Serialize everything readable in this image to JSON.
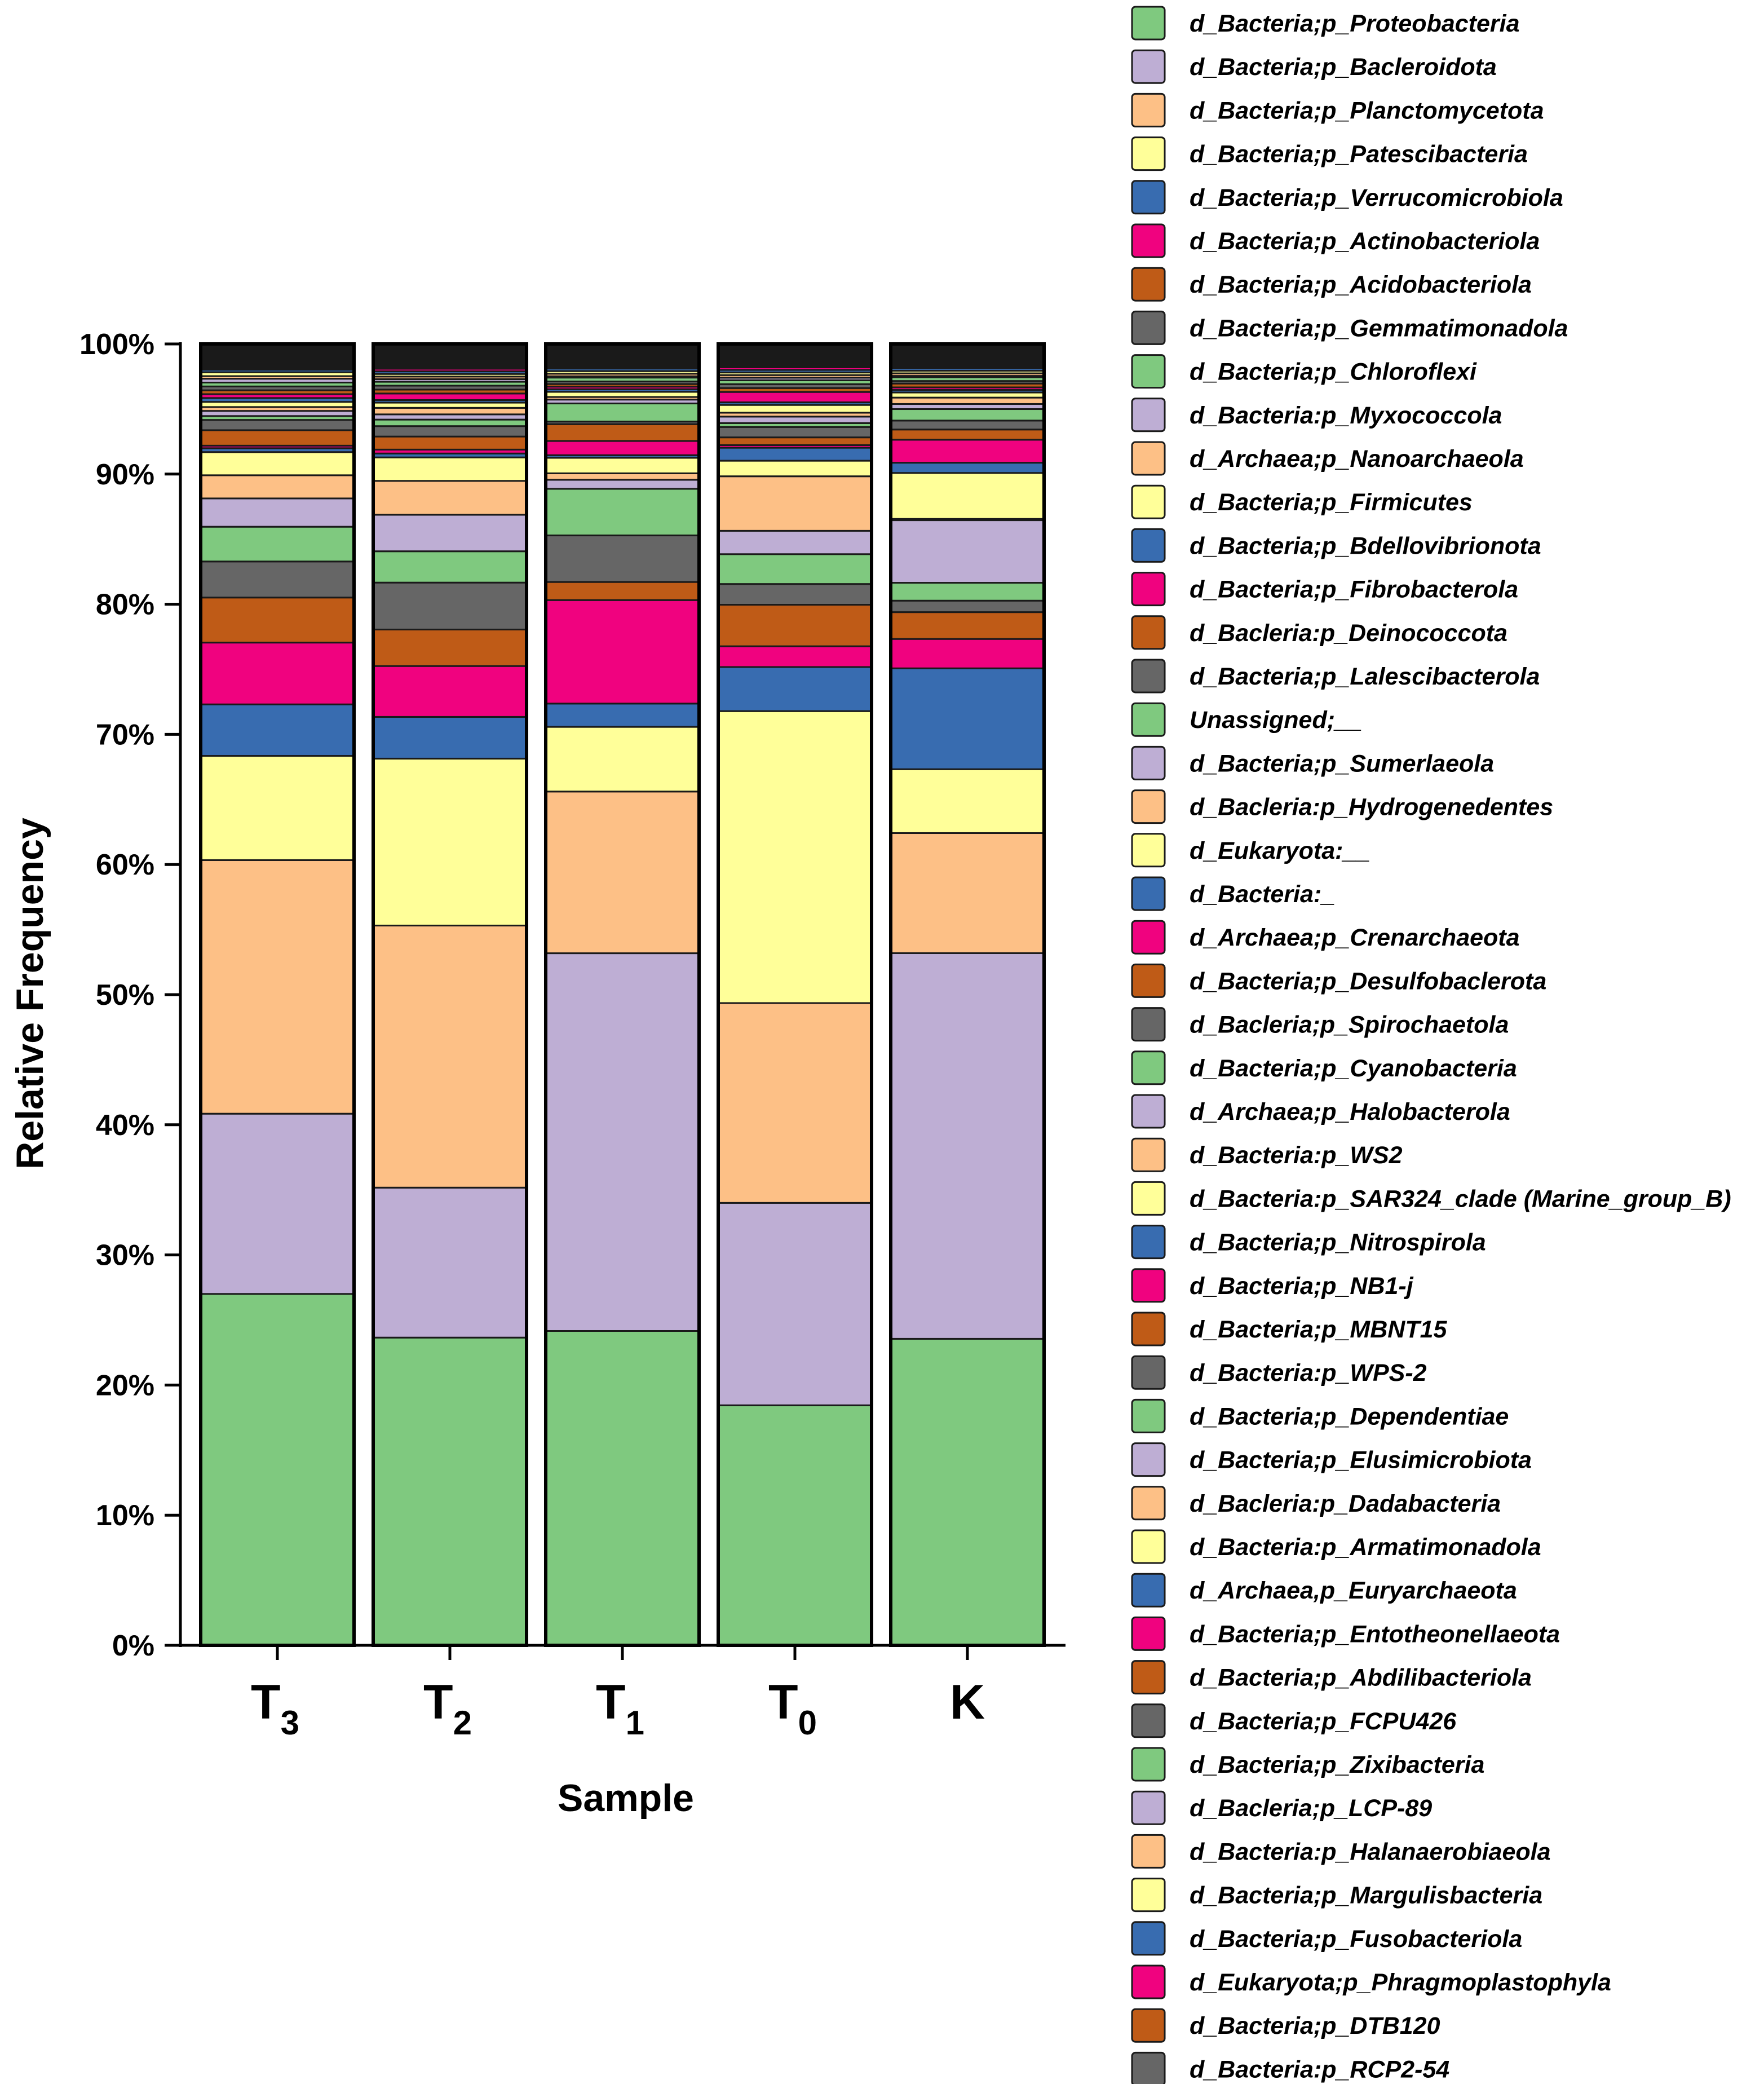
{
  "chart_data": {
    "type": "stacked-bar-100",
    "title": "",
    "xlabel": "Sample",
    "ylabel": "Relative Frequency",
    "ylim": [
      0,
      100
    ],
    "yticks": [
      "0%",
      "10%",
      "20%",
      "30%",
      "40%",
      "50%",
      "60%",
      "70%",
      "80%",
      "90%",
      "100%"
    ],
    "categories": [
      {
        "main": "T",
        "sub": "3"
      },
      {
        "main": "T",
        "sub": "2"
      },
      {
        "main": "T",
        "sub": "1"
      },
      {
        "main": "T",
        "sub": "0"
      },
      {
        "main": "K",
        "sub": ""
      }
    ],
    "palette": [
      "#7fc97f",
      "#beaed4",
      "#fdc086",
      "#ffff99",
      "#386cb0",
      "#f0027f",
      "#bf5b17",
      "#666666"
    ],
    "legend": [
      "d_Bacteria;p_Proteobacteria",
      "d_Bacteria;p_Bacleroidota",
      "d_Bacteria;p_Planctomycetota",
      "d_Bacteria;p_Patescibacteria",
      "d_Bacteria;p_Verrucomicrobiola",
      "d_Bacteria;p_Actinobacteriola",
      "d_Bacteria;p_Acidobacteriola",
      "d_Bacteria;p_Gemmatimonadola",
      "d_Bacteria;p_Chloroflexi",
      "d_Bacteria:p_Myxococcola",
      "d_Archaea;p_Nanoarchaeola",
      "d_Bacteria;p_Firmicutes",
      "d_Bacteria;p_Bdellovibrionota",
      "d_Bacteria;p_Fibrobacterola",
      "d_Bacleria:p_Deinococcota",
      "d_Bacteria;p_Lalescibacterola",
      "Unassigned;__",
      "d_Bacteria;p_Sumerlaeola",
      "d_Bacleria:p_Hydrogenedentes",
      "d_Eukaryota:__",
      "d_Bacteria:_",
      "d_Archaea;p_Crenarchaeota",
      "d_Bacteria;p_Desulfobaclerota",
      "d_Bacleria;p_Spirochaetola",
      "d_Bacteria;p_Cyanobacteria",
      "d_Archaea;p_Halobacterola",
      "d_Bacteria:p_WS2",
      "d_Bacteria:p_SAR324_clade (Marine_group_B)",
      "d_Bacteria;p_Nitrospirola",
      "d_Bacteria;p_NB1-j",
      "d_Bacteria;p_MBNT15",
      "d_Bacteria:p_WPS-2",
      "d_Bacteria;p_Dependentiae",
      "d_Bacteria;p_Elusimicrobiota",
      "d_Bacleria:p_Dadabacteria",
      "d_Bacteria:p_Armatimonadola",
      "d_Archaea,p_Euryarchaeota",
      "d_Bacteria;p_Entotheonellaeota",
      "d_Bacteria;p_Abdilibacteriola",
      "d_Bacteria;p_FCPU426",
      "d_Bacteria;p_Zixibacteria",
      "d_Bacleria;p_LCP-89",
      "d_Bacteria:p_Halanaerobiaeola",
      "d_Bacteria;p_Margulisbacteria",
      "d_Bacteria;p_Fusobacteriola",
      "d_Eukaryota;p_Phragmoplastophyla",
      "d_Bacteria;p_DTB120",
      "d_Bacteria:p_RCP2-54"
    ],
    "series_values": {
      "T3": [
        27.3,
        14.0,
        19.7,
        8.1,
        4.0,
        4.8,
        3.5,
        2.8,
        2.7,
        2.2,
        1.8,
        1.8,
        0.3,
        0.2,
        1.2,
        0.8,
        0.3,
        0.4,
        0.3,
        0.4,
        0.3,
        0.3,
        0.3,
        0.3,
        0.3,
        0.3,
        0.2,
        0.3,
        0.2,
        0.1,
        0.1,
        0.1,
        0.1,
        0.1,
        0.1,
        0.1,
        0.1,
        0.1,
        0.1,
        0.1,
        0.1,
        0.1,
        0.1,
        0.1,
        0.1,
        0.1,
        0.1,
        0.2
      ],
      "T2": [
        23.6,
        11.5,
        20.1,
        12.8,
        3.2,
        3.9,
        2.8,
        3.6,
        2.4,
        2.8,
        2.6,
        1.8,
        0.3,
        0.3,
        1.0,
        0.8,
        0.5,
        0.4,
        0.5,
        0.4,
        0.2,
        0.5,
        0.3,
        0.3,
        0.3,
        0.2,
        0.2,
        0.2,
        0.2,
        0.2,
        0.1,
        0.1,
        0.1,
        0.1,
        0.1,
        0.1,
        0.1,
        0.1,
        0.1,
        0.1,
        0.1,
        0.1,
        0.1,
        0.1,
        0.1,
        0.1,
        0.1,
        0.2
      ],
      "T1": [
        24.3,
        29.2,
        12.5,
        5.0,
        1.8,
        8.0,
        1.4,
        3.6,
        3.6,
        0.7,
        0.5,
        1.2,
        0.2,
        1.1,
        1.3,
        0.2,
        1.4,
        0.3,
        0.2,
        0.4,
        0.2,
        0.2,
        0.2,
        0.2,
        0.3,
        0.1,
        0.2,
        0.2,
        0.2,
        0.1,
        0.1,
        0.1,
        0.1,
        0.1,
        0.1,
        0.1,
        0.1,
        0.1,
        0.1,
        0.1,
        0.1,
        0.1,
        0.1,
        0.1,
        0.1,
        0.1,
        0.1,
        0.1
      ],
      "T0": [
        18.5,
        15.6,
        15.4,
        22.5,
        3.4,
        1.6,
        3.2,
        1.6,
        2.3,
        1.8,
        4.2,
        1.2,
        1.0,
        0.2,
        0.6,
        0.8,
        0.3,
        0.5,
        0.3,
        0.6,
        0.2,
        0.8,
        0.3,
        0.3,
        0.3,
        0.2,
        0.2,
        0.2,
        0.2,
        0.2,
        0.1,
        0.1,
        0.1,
        0.1,
        0.1,
        0.1,
        0.1,
        0.1,
        0.1,
        0.1,
        0.1,
        0.1,
        0.1,
        0.1,
        0.1,
        0.1,
        0.1,
        0.1
      ],
      "K": [
        24.0,
        30.2,
        9.4,
        5.0,
        7.9,
        2.3,
        2.1,
        0.9,
        1.4,
        4.9,
        0.1,
        3.6,
        0.8,
        1.8,
        0.8,
        0.7,
        0.9,
        0.4,
        0.5,
        0.4,
        0.2,
        0.2,
        0.3,
        0.2,
        0.3,
        0.1,
        0.2,
        0.2,
        0.2,
        0.1,
        0.1,
        0.1,
        0.1,
        0.1,
        0.1,
        0.1,
        0.1,
        0.1,
        0.1,
        0.1,
        0.1,
        0.1,
        0.1,
        0.1,
        0.1,
        0.1,
        0.1,
        0.1
      ]
    },
    "grid": false,
    "legend_position": "right"
  }
}
